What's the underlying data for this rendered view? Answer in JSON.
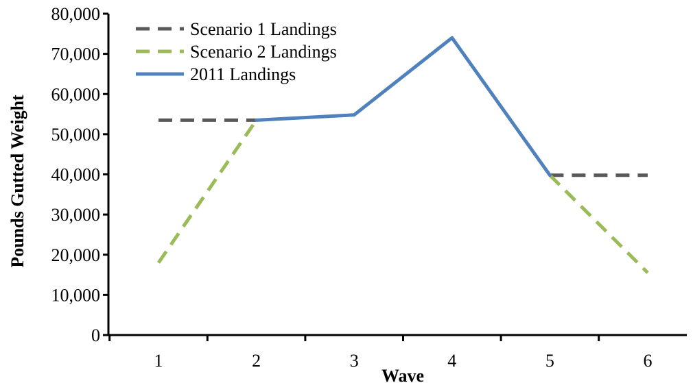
{
  "chart_data": {
    "type": "line",
    "title": "",
    "xlabel": "Wave",
    "ylabel": "Pounds Gutted Weight",
    "categories": [
      "1",
      "2",
      "3",
      "4",
      "5",
      "6"
    ],
    "y_tick_labels": [
      "0",
      "10,000",
      "20,000",
      "30,000",
      "40,000",
      "50,000",
      "60,000",
      "70,000",
      "80,000"
    ],
    "ylim": [
      0,
      80000
    ],
    "grid": false,
    "legend_position": "top-left",
    "series": [
      {
        "name": "Scenario 1 Landings",
        "color": "#595959",
        "dash": "dashed",
        "values": [
          53500,
          53500,
          null,
          null,
          39800,
          39800
        ]
      },
      {
        "name": "Scenario 2 Landings",
        "color": "#9BBB59",
        "dash": "dashed",
        "values": [
          18000,
          53500,
          null,
          null,
          39800,
          15500
        ]
      },
      {
        "name": "2011 Landings",
        "color": "#4F81BD",
        "dash": "solid",
        "values": [
          null,
          53500,
          54800,
          74000,
          39800,
          null
        ]
      }
    ]
  }
}
